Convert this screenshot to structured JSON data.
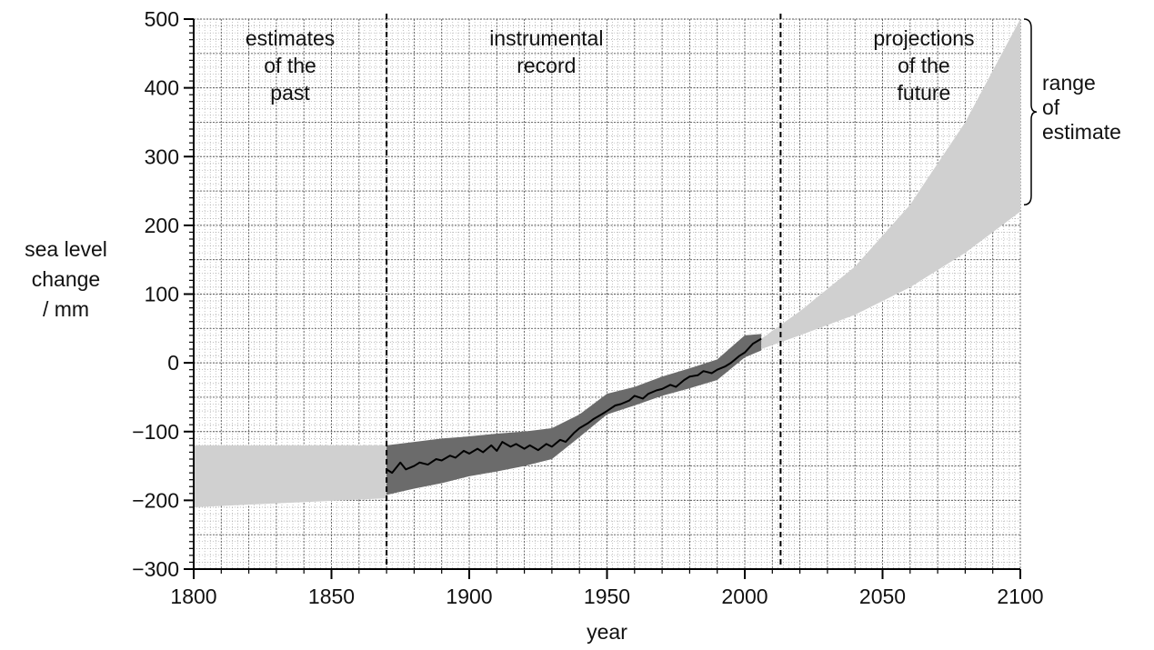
{
  "chart_data": {
    "type": "area",
    "xlabel": "year",
    "ylabel_lines": [
      "sea level",
      "change",
      "/ mm"
    ],
    "xlim": [
      1800,
      2100
    ],
    "ylim": [
      -300,
      500
    ],
    "xticks": [
      1800,
      1850,
      1900,
      1950,
      2000,
      2050,
      2100
    ],
    "xtick_labels": [
      "1800",
      "1850",
      "1900",
      "1950",
      "2000",
      "2050",
      "2100"
    ],
    "yticks": [
      -300,
      -200,
      -100,
      0,
      100,
      200,
      300,
      400,
      500
    ],
    "ytick_labels": [
      "−300",
      "−200",
      "−100",
      "0",
      "100",
      "200",
      "300",
      "400",
      "500"
    ],
    "grid": "major every 10 years / 50 mm, minor every 2 years / 10 mm",
    "dividers": [
      1870,
      2013
    ],
    "regions": [
      {
        "lines": [
          "estimates",
          "of the",
          "past"
        ],
        "x_center": 1835
      },
      {
        "lines": [
          "instrumental",
          "record"
        ],
        "x_center": 1928
      },
      {
        "lines": [
          "projections",
          "of the",
          "future"
        ],
        "x_center": 2065
      }
    ],
    "annotation": {
      "lines": [
        "range",
        "of",
        "estimate"
      ],
      "y_range": [
        230,
        500
      ]
    },
    "colors": {
      "light_band": "#d0d0d0",
      "dark_band": "#6b6b6b",
      "line": "#000000"
    },
    "series": [
      {
        "role": "estimates of the past",
        "x": [
          1800,
          1870
        ],
        "lower": [
          -210,
          -197
        ],
        "upper": [
          -120,
          -120
        ]
      },
      {
        "role": "instrumental record uncertainty",
        "x": [
          1870,
          1880,
          1890,
          1900,
          1910,
          1920,
          1930,
          1940,
          1950,
          1960,
          1970,
          1980,
          1990,
          2000,
          2006
        ],
        "lower": [
          -192,
          -183,
          -175,
          -165,
          -158,
          -150,
          -140,
          -108,
          -75,
          -62,
          -48,
          -37,
          -25,
          8,
          18
        ],
        "upper": [
          -120,
          -115,
          -110,
          -107,
          -103,
          -100,
          -95,
          -75,
          -45,
          -35,
          -20,
          -8,
          5,
          40,
          42
        ]
      },
      {
        "role": "instrumental record",
        "x": [
          1870,
          1872,
          1875,
          1877,
          1880,
          1882,
          1885,
          1888,
          1890,
          1893,
          1895,
          1898,
          1900,
          1903,
          1905,
          1908,
          1910,
          1912,
          1915,
          1917,
          1920,
          1922,
          1925,
          1928,
          1930,
          1933,
          1935,
          1938,
          1940,
          1943,
          1945,
          1948,
          1950,
          1953,
          1955,
          1958,
          1960,
          1963,
          1965,
          1968,
          1970,
          1973,
          1975,
          1978,
          1980,
          1983,
          1985,
          1988,
          1990,
          1993,
          1995,
          1998,
          2000,
          2003,
          2006
        ],
        "y": [
          -155,
          -160,
          -145,
          -155,
          -150,
          -145,
          -148,
          -140,
          -142,
          -135,
          -138,
          -128,
          -132,
          -125,
          -130,
          -120,
          -128,
          -115,
          -122,
          -118,
          -125,
          -120,
          -127,
          -118,
          -122,
          -112,
          -115,
          -102,
          -95,
          -88,
          -82,
          -75,
          -70,
          -62,
          -60,
          -55,
          -48,
          -52,
          -45,
          -40,
          -38,
          -32,
          -35,
          -25,
          -20,
          -18,
          -12,
          -15,
          -10,
          -5,
          0,
          10,
          15,
          28,
          35
        ]
      },
      {
        "role": "projections of the future",
        "x": [
          2006,
          2020,
          2040,
          2060,
          2080,
          2100
        ],
        "lower": [
          20,
          40,
          70,
          110,
          160,
          220
        ],
        "upper": [
          35,
          75,
          140,
          230,
          350,
          500
        ]
      }
    ]
  }
}
